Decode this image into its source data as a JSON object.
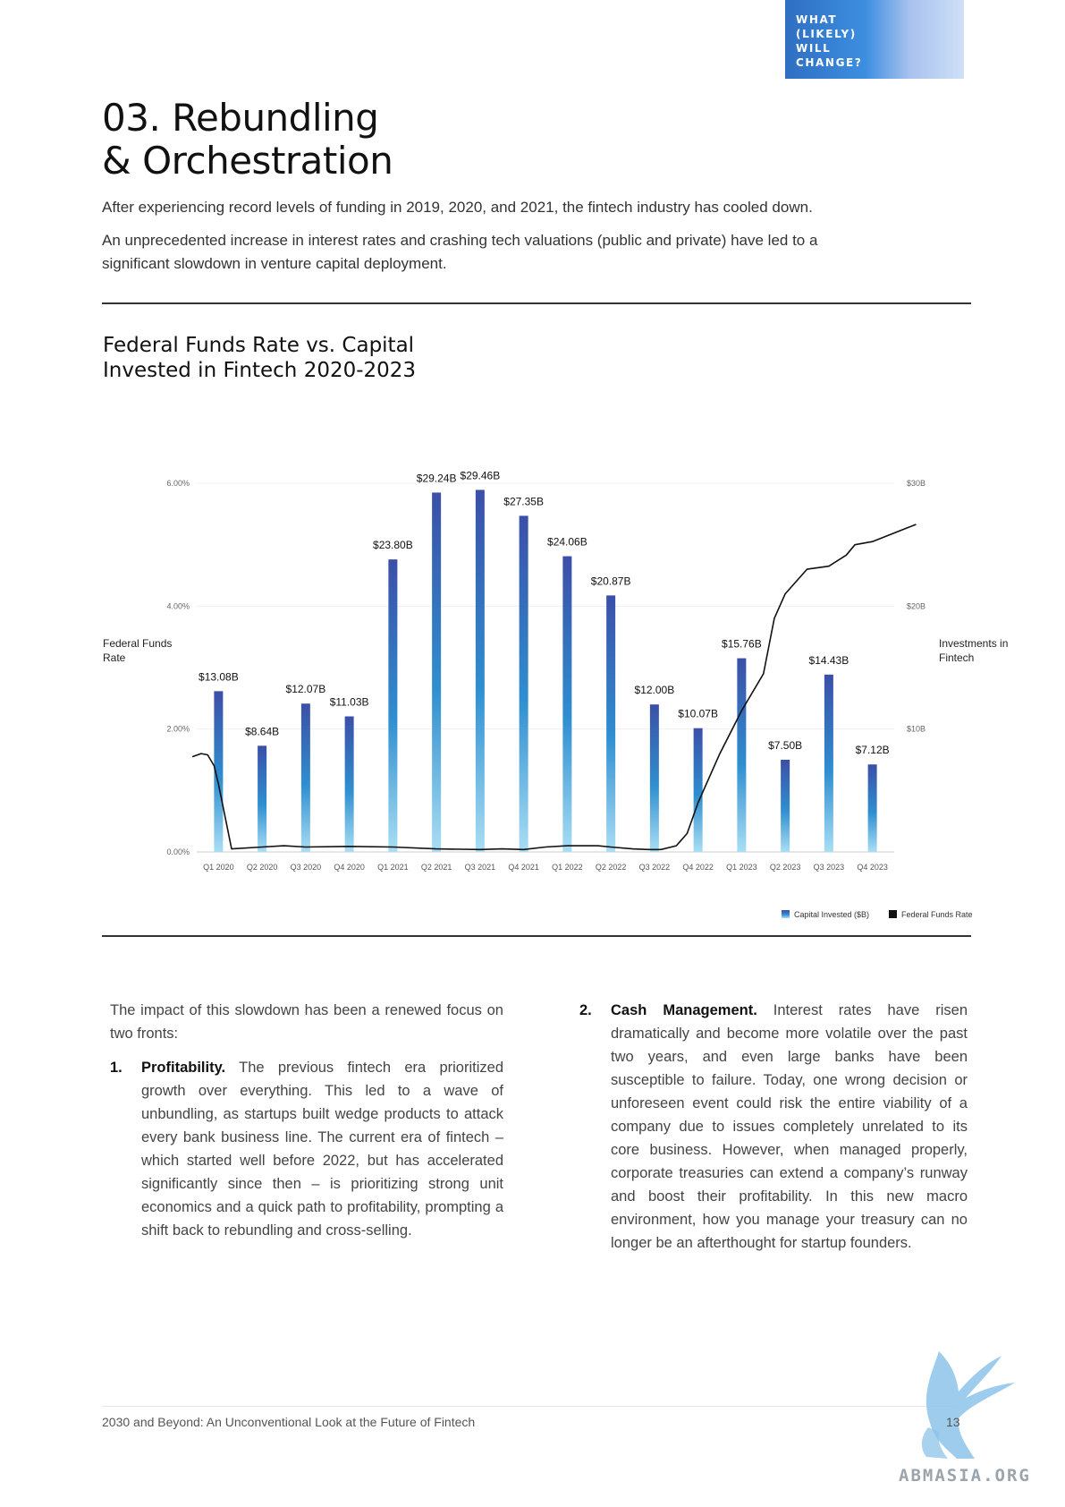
{
  "header": {
    "tag": "WHAT\n(LIKELY)\nWILL\nCHANGE?",
    "title_line1": "03. Rebundling",
    "title_line2": "& Orchestration"
  },
  "intro": {
    "p1": "After experiencing record levels of funding in 2019, 2020, and 2021, the fintech industry has cooled down.",
    "p2": "An unprecedented increase in interest rates and crashing tech valuations (public and private) have led to a significant slowdown in venture capital deployment."
  },
  "chart_title": {
    "line1": "Federal Funds Rate vs. Capital",
    "line2": "Invested in Fintech 2020-2023"
  },
  "chart_data": {
    "type": "bar",
    "title": "Federal Funds Rate vs. Capital Invested in Fintech 2020-2023",
    "categories": [
      "Q1 2020",
      "Q2 2020",
      "Q3 2020",
      "Q4 2020",
      "Q1 2021",
      "Q2 2021",
      "Q3 2021",
      "Q4 2021",
      "Q1 2022",
      "Q2 2022",
      "Q3 2022",
      "Q4 2022",
      "Q1 2023",
      "Q2 2023",
      "Q3 2023",
      "Q4 2023"
    ],
    "series": [
      {
        "name": "Capital Invested ($B)",
        "type": "bar",
        "axis": "right",
        "values": [
          13.08,
          8.64,
          12.07,
          11.03,
          23.8,
          29.24,
          29.46,
          27.35,
          24.06,
          20.87,
          12.0,
          10.07,
          15.76,
          7.5,
          14.43,
          7.12
        ],
        "labels": [
          "$13.08B",
          "$8.64B",
          "$12.07B",
          "$11.03B",
          "$23.80B",
          "$29.24B",
          "$29.46B",
          "$27.35B",
          "$24.06B",
          "$20.87B",
          "$12.00B",
          "$10.07B",
          "$15.76B",
          "$7.50B",
          "$14.43B",
          "$7.12B"
        ]
      },
      {
        "name": "Federal Funds Rate",
        "type": "line",
        "axis": "left",
        "x": [
          -0.6,
          -0.4,
          -0.25,
          -0.1,
          0.0,
          0.3,
          1.0,
          1.5,
          2.0,
          3.0,
          4.0,
          5.0,
          6.0,
          6.5,
          7.0,
          7.5,
          8.0,
          8.5,
          8.7,
          9.0,
          9.5,
          9.85,
          10.0,
          10.15,
          10.5,
          10.75,
          11.0,
          11.5,
          12.0,
          12.25,
          12.5,
          12.75,
          13.0,
          13.5,
          14.0,
          14.4,
          14.6,
          15.0,
          16.0
        ],
        "values": [
          1.55,
          1.6,
          1.58,
          1.4,
          1.1,
          0.05,
          0.08,
          0.1,
          0.08,
          0.09,
          0.08,
          0.05,
          0.04,
          0.05,
          0.04,
          0.08,
          0.1,
          0.1,
          0.1,
          0.08,
          0.05,
          0.04,
          0.04,
          0.04,
          0.1,
          0.3,
          0.8,
          1.6,
          2.3,
          2.6,
          2.9,
          3.8,
          4.2,
          4.6,
          4.65,
          4.83,
          5.0,
          5.05,
          5.33
        ]
      }
    ],
    "y_left": {
      "label": "Federal Funds Rate",
      "ticks": [
        "0.00%",
        "2.00%",
        "4.00%",
        "6.00%"
      ],
      "range": [
        0,
        6
      ]
    },
    "y_right": {
      "label": "Investments in Fintech",
      "ticks": [
        "$10B",
        "$20B",
        "$30B"
      ],
      "range": [
        0,
        30
      ]
    },
    "legend": {
      "position": "bottom-right",
      "items": [
        "Capital Invested ($B)",
        "Federal Funds Rate"
      ]
    },
    "grid": true
  },
  "body": {
    "lead": "The impact of this slowdown has been a renewed focus on two fronts:",
    "items": [
      {
        "number": "1.",
        "term": "Profitability.",
        "text": "The previous fintech era prioritized growth over everything. This led to a wave of unbundling, as startups built wedge products to attack every bank business line. The current era of fintech – which started well before 2022, but has accelerated significantly since then – is prioritizing strong unit economics and a quick path to profitability, prompting a shift back to rebundling and cross-selling."
      },
      {
        "number": "2.",
        "term": "Cash Management.",
        "text": "Interest rates have risen dramatically and become more volatile over the past two years, and even large banks have been susceptible to failure. Today, one wrong decision or unforeseen event could risk the entire viability of a company due to issues completely unrelated to its core business. However, when managed properly, corporate treasuries can extend a company’s runway and boost their profitability. In this new macro environment, how you manage your treasury can no longer be an afterthought for startup founders."
      }
    ]
  },
  "footer": {
    "text": "2030 and Beyond: An Unconventional Look at the Future of Fintech",
    "page": "13",
    "watermark": "ABMASIA.ORG"
  },
  "colors": {
    "bar_top": "#3b4fa8",
    "bar_bottom": "#9fd9f2",
    "line": "#111111",
    "tag_blue": "#2f6fc2"
  }
}
